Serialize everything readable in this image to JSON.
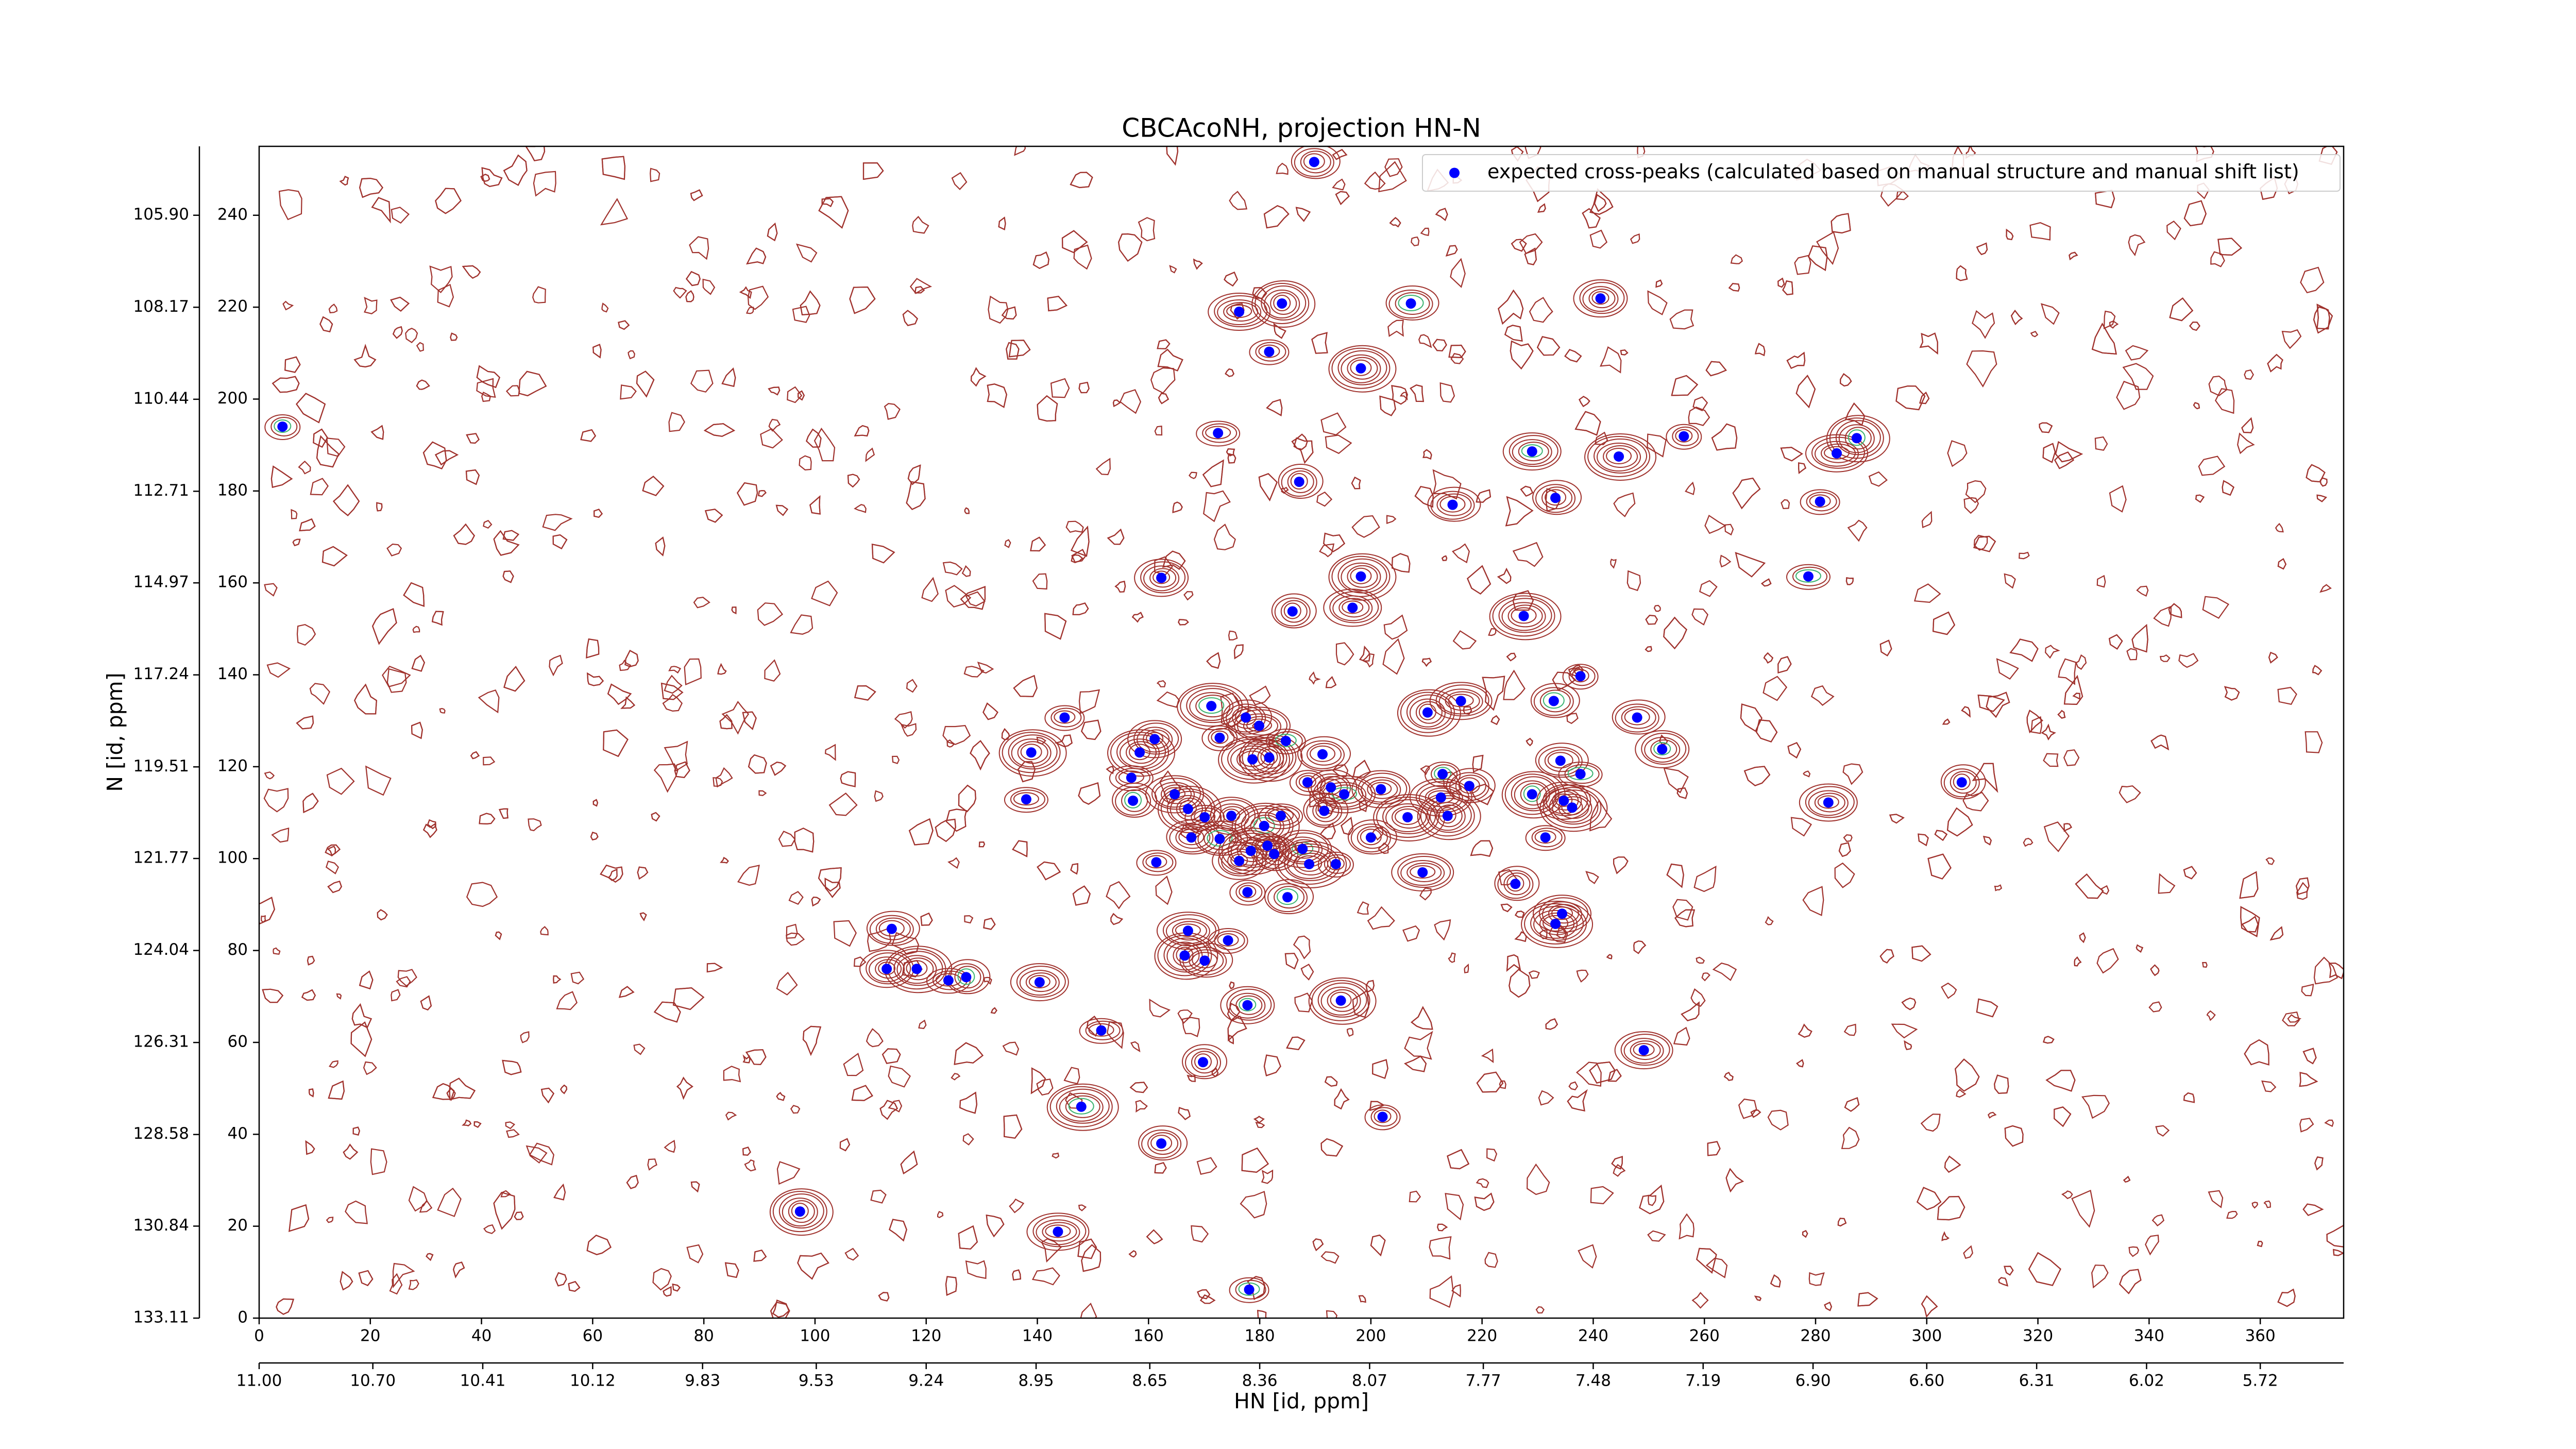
{
  "chart_data": {
    "type": "scatter",
    "title": "CBCAcoNH, projection HN-N",
    "xlabel": "HN [id, ppm]",
    "ylabel": "N [id, ppm]",
    "legend": "upper right",
    "contour_colors": [
      "#a0322d",
      "#3cb371"
    ],
    "xlim": [
      0,
      375
    ],
    "ylim": [
      0,
      255
    ],
    "xticks": [
      0,
      20,
      40,
      60,
      80,
      100,
      120,
      140,
      160,
      180,
      200,
      220,
      240,
      260,
      280,
      300,
      320,
      340,
      360
    ],
    "yticks": [
      0,
      20,
      40,
      60,
      80,
      100,
      120,
      140,
      160,
      180,
      200,
      220,
      240
    ],
    "x2lim": [
      11.0,
      5.5
    ],
    "x2ticks": [
      {
        "value": 11.0,
        "label": "11.00"
      },
      {
        "value": 10.7,
        "label": "10.70"
      },
      10.41,
      10.12,
      9.83,
      9.53,
      9.24,
      8.95,
      8.65,
      8.36,
      8.07,
      7.77,
      7.48,
      7.19,
      {
        "value": 6.9,
        "label": "6.90"
      },
      {
        "value": 6.6,
        "label": "6.60"
      },
      6.31,
      6.02,
      5.72
    ],
    "y2lim": [
      133.11,
      104.2
    ],
    "y2ticks": [
      {
        "value": 105.9,
        "label": "105.90"
      },
      108.17,
      110.44,
      112.71,
      114.97,
      117.24,
      119.51,
      121.77,
      124.04,
      126.31,
      128.58,
      130.84,
      133.11
    ],
    "series": [
      {
        "name": "expected cross-peaks (calculated based on manual structure and manual shift list)",
        "color": "#0000ff",
        "x": [
          4.2,
          189.8,
          176.3,
          184.0,
          181.7,
          207.2,
          241.3,
          198.2,
          172.5,
          187.1,
          229.0,
          244.6,
          256.3,
          233.2,
          283.8,
          287.4,
          280.8,
          214.7,
          162.3,
          198.2,
          278.7,
          185.9,
          196.7,
          227.5,
          237.7,
          232.9,
          216.2,
          210.2,
          144.9,
          247.9,
          252.4,
          138.9,
          138.0,
          306.3,
          282.3,
          171.3,
          172.8,
          177.5,
          179.9,
          181.7,
          184.7,
          191.3,
          161.1,
          158.4,
          156.9,
          157.2,
          164.7,
          178.7,
          188.6,
          192.8,
          195.2,
          167.1,
          170.1,
          167.7,
          174.9,
          180.8,
          183.8,
          191.6,
          201.8,
          206.6,
          212.9,
          217.7,
          212.6,
          213.8,
          161.4,
          172.8,
          176.3,
          178.4,
          181.4,
          182.6,
          187.7,
          188.9,
          193.7,
          200.0,
          209.3,
          229.0,
          231.4,
          234.1,
          234.7,
          236.2,
          237.7,
          226.0,
          234.4,
          233.2,
          177.8,
          185.0,
          167.1,
          166.5,
          174.3,
          170.1,
          177.8,
          194.6,
          151.5,
          169.8,
          249.1,
          147.9,
          202.1,
          162.3,
          143.7,
          97.3,
          178.1,
          113.8,
          112.9,
          118.3,
          124.0,
          127.2,
          140.4
        ],
        "values": [
          194.0,
          251.6,
          219.0,
          220.8,
          210.3,
          220.8,
          221.9,
          206.7,
          192.6,
          182.0,
          188.6,
          187.5,
          191.9,
          178.5,
          188.2,
          191.5,
          177.7,
          177.0,
          161.1,
          161.4,
          161.4,
          153.8,
          154.6,
          152.8,
          139.7,
          134.3,
          134.3,
          131.8,
          130.7,
          130.7,
          123.8,
          123.1,
          112.9,
          116.6,
          112.2,
          133.2,
          126.3,
          130.7,
          128.9,
          122.0,
          125.6,
          122.7,
          126.0,
          123.1,
          117.6,
          112.6,
          114.0,
          121.6,
          116.6,
          115.5,
          114.0,
          110.8,
          109.0,
          104.6,
          109.3,
          107.1,
          109.3,
          110.4,
          115.1,
          109.0,
          118.4,
          115.8,
          113.3,
          109.3,
          99.2,
          104.3,
          99.5,
          101.7,
          102.8,
          101.0,
          102.1,
          98.8,
          98.8,
          104.6,
          97.0,
          114.0,
          104.6,
          121.3,
          112.6,
          111.1,
          118.4,
          94.5,
          88.0,
          85.8,
          92.7,
          91.6,
          84.3,
          78.9,
          82.2,
          77.8,
          68.1,
          69.1,
          62.6,
          55.7,
          58.3,
          46.0,
          43.8,
          38.0,
          18.8,
          23.2,
          6.2,
          84.7,
          76.0,
          76.0,
          73.5,
          74.2,
          73.1
        ]
      }
    ]
  }
}
